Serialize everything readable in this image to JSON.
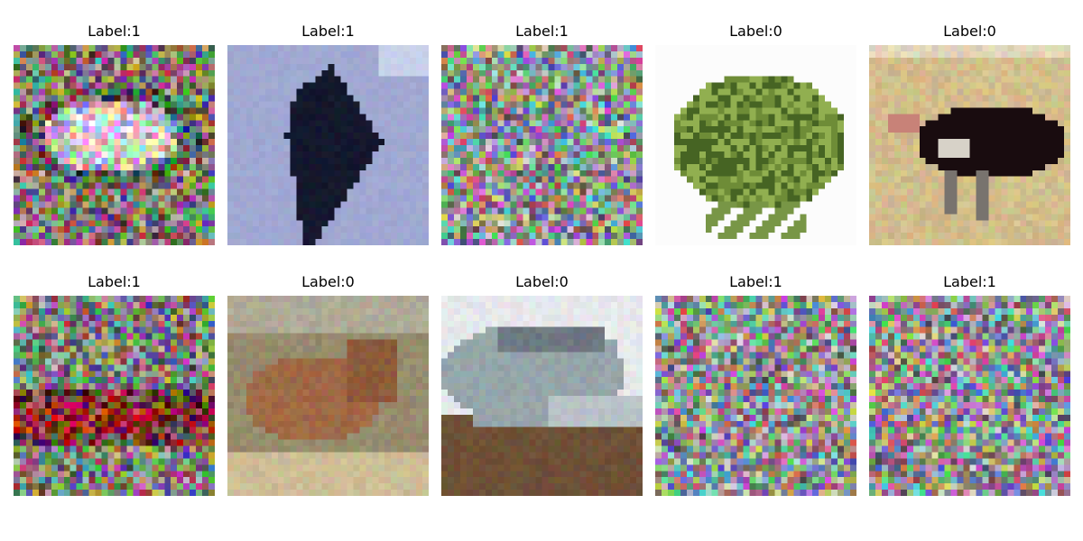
{
  "figure": {
    "images": [
      {
        "label": "Label:1",
        "content": "noisy-image-light-object"
      },
      {
        "label": "Label:1",
        "content": "dark-aircraft-on-blue-sky"
      },
      {
        "label": "Label:1",
        "content": "random-noise"
      },
      {
        "label": "Label:0",
        "content": "green-frog-on-white"
      },
      {
        "label": "Label:0",
        "content": "ostrich-on-grass"
      },
      {
        "label": "Label:1",
        "content": "noisy-image-red-object"
      },
      {
        "label": "Label:0",
        "content": "brown-deer"
      },
      {
        "label": "Label:0",
        "content": "silver-car"
      },
      {
        "label": "Label:1",
        "content": "random-noise"
      },
      {
        "label": "Label:1",
        "content": "random-noise"
      }
    ]
  }
}
